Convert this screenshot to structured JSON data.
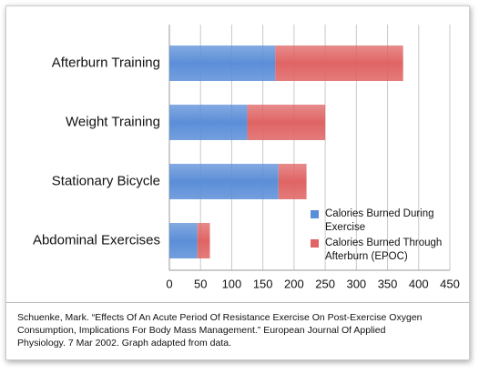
{
  "chart_data": {
    "type": "stacked-hbar",
    "categories": [
      "Afterburn Training",
      "Weight Training",
      "Stationary Bicycle",
      "Abdominal Exercises"
    ],
    "series": [
      {
        "name": "Calories Burned During Exercise",
        "color": "#5b8ed8",
        "values": [
          170,
          125,
          175,
          45
        ]
      },
      {
        "name": "Calories Burned Through Afterburn (EPOC)",
        "color": "#e06464",
        "values": [
          205,
          125,
          45,
          20
        ]
      }
    ],
    "xlim": [
      0,
      450
    ],
    "xticks": [
      0,
      50,
      100,
      150,
      200,
      250,
      300,
      350,
      400,
      450
    ],
    "grid": true,
    "source": "Schuenke, Mark. “Effects Of An Acute Period Of Resistance Exercise On Post-Exercise Oxygen Consumption, Implications For Body Mass Management.” European Journal Of Applied Physiology. 7 Mar 2002. Graph adapted from data."
  }
}
